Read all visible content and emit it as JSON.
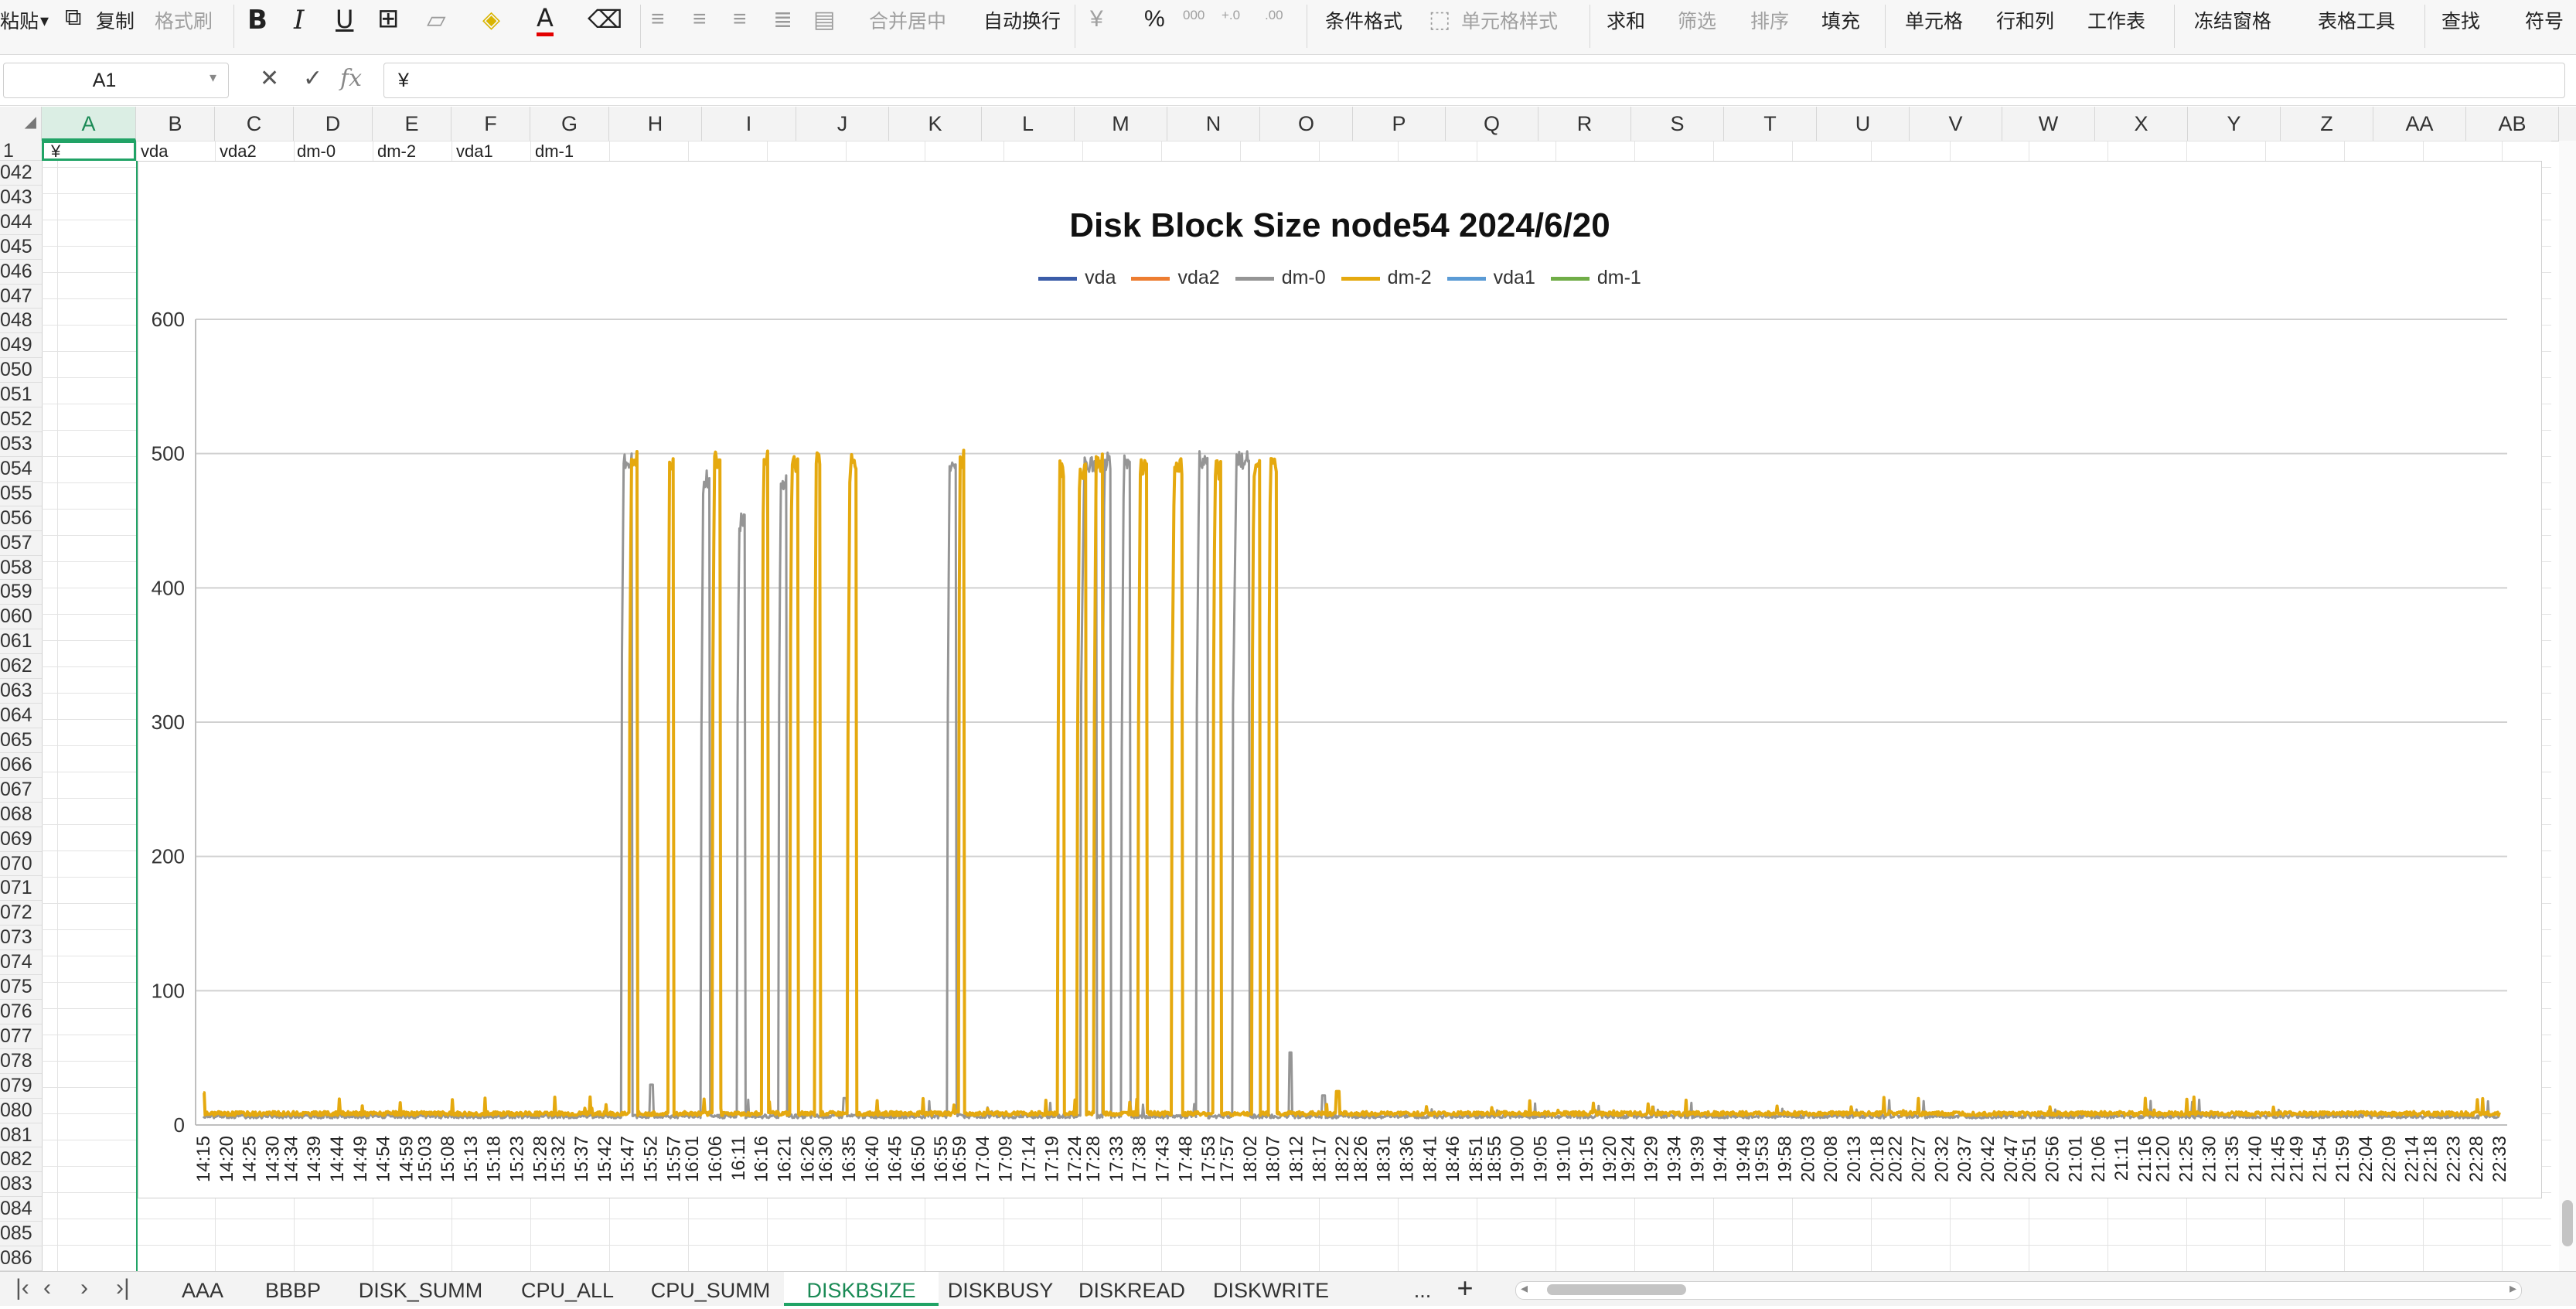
{
  "toolbar": {
    "paste": "粘贴",
    "copy": "复制",
    "format_painter": "格式刷",
    "merge_center": "合并居中",
    "wrap_text": "自动换行",
    "conditional_format": "条件格式",
    "cell_style": "单元格样式",
    "sum": "求和",
    "filter": "筛选",
    "sort": "排序",
    "fill": "填充",
    "cell": "单元格",
    "rows_cols": "行和列",
    "worksheet": "工作表",
    "freeze": "冻结窗格",
    "table_tools": "表格工具",
    "find": "查找",
    "symbol": "符号",
    "bold": "B",
    "italic": "I",
    "underline": "U",
    "font_color": "A",
    "currency": "¥",
    "percent": "%",
    "thousands": "000",
    "inc_dec": "+.0",
    "dec_dec": ".00"
  },
  "formula_bar": {
    "name_box": "A1",
    "fx": "fx",
    "cancel": "✕",
    "confirm": "✓",
    "content": "¥"
  },
  "columns": [
    "A",
    "B",
    "C",
    "D",
    "E",
    "F",
    "G",
    "H",
    "I",
    "J",
    "K",
    "L",
    "M",
    "N",
    "O",
    "P",
    "Q",
    "R",
    "S",
    "T",
    "U",
    "V",
    "W",
    "X",
    "Y",
    "Z",
    "AA",
    "AB"
  ],
  "selected_column": "A",
  "row1": {
    "num": "1",
    "A": "¥",
    "B": "vda",
    "C": "vda2",
    "D": "dm-0",
    "E": "dm-2",
    "F": "vda1",
    "G": "dm-1"
  },
  "row_numbers": [
    "042",
    "043",
    "044",
    "045",
    "046",
    "047",
    "048",
    "049",
    "050",
    "051",
    "052",
    "053",
    "054",
    "055",
    "056",
    "057",
    "058",
    "059",
    "060",
    "061",
    "062",
    "063",
    "064",
    "065",
    "066",
    "067",
    "068",
    "069",
    "070",
    "071",
    "072",
    "073",
    "074",
    "075",
    "076",
    "077",
    "078",
    "079",
    "080",
    "081",
    "082",
    "083",
    "084",
    "085",
    "086"
  ],
  "chart_data": {
    "type": "line",
    "title": "Disk Block Size node54  2024/6/20",
    "xlabel": "",
    "ylabel": "",
    "ylim": [
      0,
      600
    ],
    "yticks": [
      0,
      100,
      200,
      300,
      400,
      500,
      600
    ],
    "grid": true,
    "legend": "top",
    "categories": [
      "14:15",
      "14:20",
      "14:25",
      "14:30",
      "14:34",
      "14:39",
      "14:44",
      "14:49",
      "14:54",
      "14:59",
      "15:03",
      "15:08",
      "15:13",
      "15:18",
      "15:23",
      "15:28",
      "15:32",
      "15:37",
      "15:42",
      "15:47",
      "15:52",
      "15:57",
      "16:01",
      "16:06",
      "16:11",
      "16:16",
      "16:21",
      "16:26",
      "16:30",
      "16:35",
      "16:40",
      "16:45",
      "16:50",
      "16:55",
      "16:59",
      "17:04",
      "17:09",
      "17:14",
      "17:19",
      "17:24",
      "17:28",
      "17:33",
      "17:38",
      "17:43",
      "17:48",
      "17:53",
      "17:57",
      "18:02",
      "18:07",
      "18:12",
      "18:17",
      "18:22",
      "18:26",
      "18:31",
      "18:36",
      "18:41",
      "18:46",
      "18:51",
      "18:55",
      "19:00",
      "19:05",
      "19:10",
      "19:15",
      "19:20",
      "19:24",
      "19:29",
      "19:34",
      "19:39",
      "19:44",
      "19:49",
      "19:53",
      "19:58",
      "20:03",
      "20:08",
      "20:13",
      "20:18",
      "20:22",
      "20:27",
      "20:32",
      "20:37",
      "20:42",
      "20:47",
      "20:51",
      "20:56",
      "21:01",
      "21:06",
      "21:11",
      "21:16",
      "21:20",
      "21:25",
      "21:30",
      "21:35",
      "21:40",
      "21:45",
      "21:49",
      "21:54",
      "21:59",
      "22:04",
      "22:09",
      "22:14",
      "22:18",
      "22:23",
      "22:28",
      "22:33"
    ],
    "series": [
      {
        "name": "vda",
        "color": "#3b5ca8"
      },
      {
        "name": "vda2",
        "color": "#ed7d31"
      },
      {
        "name": "dm-0",
        "color": "#959595",
        "bursts": [
          [
            15.76,
            15.8,
            503
          ],
          [
            16.05,
            16.08,
            488
          ],
          [
            16.18,
            16.21,
            456
          ],
          [
            16.33,
            16.36,
            485
          ],
          [
            16.94,
            16.97,
            500
          ],
          [
            17.42,
            17.48,
            500
          ],
          [
            17.5,
            17.53,
            501
          ],
          [
            17.57,
            17.6,
            500
          ],
          [
            17.84,
            17.88,
            503
          ],
          [
            17.97,
            18.03,
            502
          ]
        ],
        "baseline": 5,
        "spikes": [
          [
            15.87,
            30
          ],
          [
            16.57,
            20
          ],
          [
            18.18,
            54
          ],
          [
            18.3,
            22
          ]
        ]
      },
      {
        "name": "dm-2",
        "color": "#e5a90f",
        "bursts": [
          [
            15.79,
            15.82,
            503
          ],
          [
            15.93,
            15.95,
            498
          ],
          [
            16.09,
            16.12,
            503
          ],
          [
            16.27,
            16.29,
            503
          ],
          [
            16.37,
            16.4,
            500
          ],
          [
            16.46,
            16.48,
            503
          ],
          [
            16.58,
            16.61,
            500
          ],
          [
            16.98,
            17.0,
            503
          ],
          [
            17.34,
            17.36,
            496
          ],
          [
            17.41,
            17.44,
            495
          ],
          [
            17.47,
            17.5,
            500
          ],
          [
            17.63,
            17.66,
            498
          ],
          [
            17.75,
            17.79,
            497
          ],
          [
            17.9,
            17.93,
            495
          ],
          [
            18.04,
            18.07,
            497
          ],
          [
            18.1,
            18.13,
            498
          ]
        ],
        "baseline": 7,
        "spikes": [
          [
            14.25,
            24
          ],
          [
            18.35,
            25
          ]
        ]
      },
      {
        "name": "vda1",
        "color": "#5b9bd5"
      },
      {
        "name": "dm-1",
        "color": "#70ad47"
      }
    ]
  },
  "sheets": [
    "AAA",
    "BBBP",
    "DISK_SUMM",
    "CPU_ALL",
    "CPU_SUMM",
    "DISKBSIZE",
    "DISKBUSY",
    "DISKREAD",
    "DISKWRITE"
  ],
  "active_sheet": "DISKBSIZE",
  "more_sheets": "...",
  "add_sheet": "+"
}
